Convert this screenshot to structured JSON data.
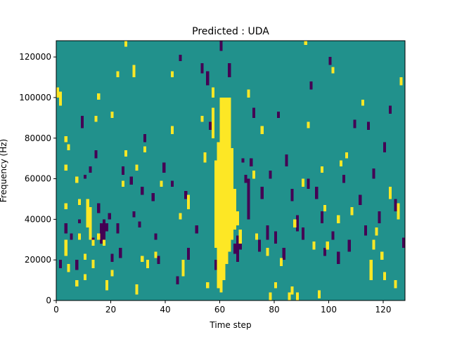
{
  "chart_data": {
    "type": "heatmap",
    "title": "Predicted : UDA",
    "xlabel": "Time step",
    "ylabel": "Frequency (Hz)",
    "xlim": [
      0,
      128
    ],
    "ylim": [
      0,
      128000
    ],
    "x_ticks": [
      0,
      20,
      40,
      60,
      80,
      100,
      120
    ],
    "y_ticks": [
      0,
      20000,
      40000,
      60000,
      80000,
      100000,
      120000
    ],
    "grid": false,
    "legend": "none",
    "n_time_steps": 128,
    "n_freq_bins": 128,
    "freq_bin_width_hz": 1000,
    "colors": {
      "background": "#21918c",
      "positive": "#fde725",
      "negative": "#440154"
    },
    "value_encoding": "1 = positive (yellow), -1 = negative (purple), 0 = background (teal)",
    "positive_runs": [
      [
        0,
        100,
        105
      ],
      [
        1,
        96,
        103
      ],
      [
        3,
        78,
        81
      ],
      [
        3,
        64,
        67
      ],
      [
        3,
        45,
        48
      ],
      [
        3,
        22,
        30
      ],
      [
        4,
        74,
        77
      ],
      [
        4,
        14,
        18
      ],
      [
        7,
        58,
        61
      ],
      [
        7,
        7,
        10
      ],
      [
        8,
        47,
        50
      ],
      [
        8,
        30,
        33
      ],
      [
        10,
        10,
        13
      ],
      [
        10,
        20,
        23
      ],
      [
        11,
        36,
        50
      ],
      [
        12,
        30,
        46
      ],
      [
        13,
        16,
        20
      ],
      [
        13,
        27,
        30
      ],
      [
        14,
        88,
        91
      ],
      [
        15,
        99,
        102
      ],
      [
        15,
        30,
        33
      ],
      [
        17,
        27,
        30
      ],
      [
        18,
        5,
        10
      ],
      [
        20,
        90,
        93
      ],
      [
        20,
        12,
        15
      ],
      [
        22,
        110,
        113
      ],
      [
        24,
        56,
        59
      ],
      [
        25,
        125,
        128
      ],
      [
        25,
        71,
        74
      ],
      [
        28,
        110,
        116
      ],
      [
        29,
        64,
        67
      ],
      [
        29,
        3,
        8
      ],
      [
        31,
        19,
        22
      ],
      [
        32,
        73,
        76
      ],
      [
        33,
        16,
        20
      ],
      [
        36,
        21,
        24
      ],
      [
        38,
        56,
        59
      ],
      [
        42,
        110,
        113
      ],
      [
        42,
        82,
        86
      ],
      [
        45,
        40,
        43
      ],
      [
        46,
        12,
        20
      ],
      [
        48,
        45,
        52
      ],
      [
        53,
        88,
        91
      ],
      [
        54,
        68,
        73
      ],
      [
        55,
        6,
        9
      ],
      [
        57,
        100,
        105
      ],
      [
        57,
        80,
        95
      ],
      [
        58,
        40,
        69
      ],
      [
        58,
        26,
        69
      ],
      [
        59,
        6,
        78
      ],
      [
        60,
        4,
        100
      ],
      [
        61,
        10,
        100
      ],
      [
        62,
        18,
        100
      ],
      [
        63,
        24,
        100
      ],
      [
        64,
        30,
        75
      ],
      [
        64,
        50,
        58
      ],
      [
        65,
        35,
        55
      ],
      [
        66,
        37,
        44
      ],
      [
        67,
        28,
        35
      ],
      [
        70,
        100,
        104
      ],
      [
        72,
        60,
        64
      ],
      [
        73,
        30,
        33
      ],
      [
        75,
        82,
        86
      ],
      [
        77,
        22,
        26
      ],
      [
        78,
        0,
        4
      ],
      [
        80,
        6,
        9
      ],
      [
        82,
        17,
        21
      ],
      [
        85,
        0,
        4
      ],
      [
        86,
        3,
        7
      ],
      [
        87,
        36,
        40
      ],
      [
        88,
        0,
        4
      ],
      [
        90,
        56,
        60
      ],
      [
        91,
        126,
        128
      ],
      [
        92,
        85,
        88
      ],
      [
        94,
        25,
        29
      ],
      [
        96,
        1,
        5
      ],
      [
        97,
        63,
        66
      ],
      [
        98,
        44,
        47
      ],
      [
        99,
        25,
        29
      ],
      [
        101,
        112,
        115
      ],
      [
        103,
        38,
        42
      ],
      [
        104,
        66,
        69
      ],
      [
        106,
        70,
        73
      ],
      [
        108,
        42,
        46
      ],
      [
        112,
        96,
        99
      ],
      [
        115,
        10,
        20
      ],
      [
        116,
        25,
        30
      ],
      [
        117,
        32,
        36
      ],
      [
        119,
        20,
        24
      ],
      [
        120,
        10,
        14
      ],
      [
        122,
        50,
        56
      ],
      [
        124,
        6,
        10
      ],
      [
        125,
        40,
        48
      ],
      [
        126,
        106,
        110
      ]
    ],
    "negative_runs": [
      [
        1,
        16,
        20
      ],
      [
        3,
        33,
        38
      ],
      [
        5,
        30,
        33
      ],
      [
        7,
        15,
        20
      ],
      [
        8,
        38,
        40
      ],
      [
        9,
        85,
        91
      ],
      [
        10,
        60,
        62
      ],
      [
        12,
        63,
        66
      ],
      [
        13,
        28,
        31
      ],
      [
        14,
        70,
        74
      ],
      [
        15,
        43,
        48
      ],
      [
        16,
        28,
        38
      ],
      [
        17,
        27,
        40
      ],
      [
        18,
        34,
        38
      ],
      [
        19,
        40,
        43
      ],
      [
        20,
        19,
        23
      ],
      [
        22,
        33,
        38
      ],
      [
        23,
        21,
        26
      ],
      [
        24,
        62,
        66
      ],
      [
        27,
        57,
        61
      ],
      [
        28,
        41,
        44
      ],
      [
        30,
        36,
        39
      ],
      [
        31,
        52,
        56
      ],
      [
        32,
        78,
        82
      ],
      [
        35,
        49,
        53
      ],
      [
        36,
        30,
        33
      ],
      [
        37,
        18,
        22
      ],
      [
        39,
        63,
        68
      ],
      [
        42,
        56,
        59
      ],
      [
        44,
        8,
        12
      ],
      [
        45,
        118,
        121
      ],
      [
        47,
        50,
        54
      ],
      [
        48,
        20,
        26
      ],
      [
        51,
        33,
        37
      ],
      [
        53,
        112,
        117
      ],
      [
        55,
        106,
        113
      ],
      [
        56,
        84,
        88
      ],
      [
        58,
        15,
        20
      ],
      [
        60,
        123,
        128
      ],
      [
        63,
        110,
        117
      ],
      [
        65,
        23,
        28
      ],
      [
        66,
        19,
        32
      ],
      [
        67,
        25,
        31
      ],
      [
        68,
        68,
        70
      ],
      [
        69,
        58,
        62
      ],
      [
        70,
        40,
        60
      ],
      [
        71,
        66,
        70
      ],
      [
        72,
        90,
        95
      ],
      [
        74,
        24,
        30
      ],
      [
        75,
        50,
        56
      ],
      [
        77,
        30,
        37
      ],
      [
        78,
        60,
        64
      ],
      [
        80,
        28,
        34
      ],
      [
        81,
        90,
        93
      ],
      [
        83,
        20,
        26
      ],
      [
        84,
        66,
        72
      ],
      [
        86,
        49,
        55
      ],
      [
        88,
        34,
        42
      ],
      [
        90,
        30,
        36
      ],
      [
        92,
        55,
        60
      ],
      [
        93,
        104,
        108
      ],
      [
        95,
        50,
        56
      ],
      [
        97,
        38,
        44
      ],
      [
        98,
        22,
        26
      ],
      [
        100,
        116,
        120
      ],
      [
        101,
        30,
        34
      ],
      [
        103,
        18,
        24
      ],
      [
        105,
        58,
        62
      ],
      [
        107,
        24,
        30
      ],
      [
        109,
        85,
        89
      ],
      [
        111,
        47,
        52
      ],
      [
        113,
        32,
        37
      ],
      [
        114,
        84,
        88
      ],
      [
        116,
        60,
        65
      ],
      [
        118,
        38,
        44
      ],
      [
        120,
        73,
        78
      ],
      [
        122,
        92,
        96
      ],
      [
        124,
        44,
        50
      ],
      [
        127,
        26,
        31
      ]
    ]
  }
}
